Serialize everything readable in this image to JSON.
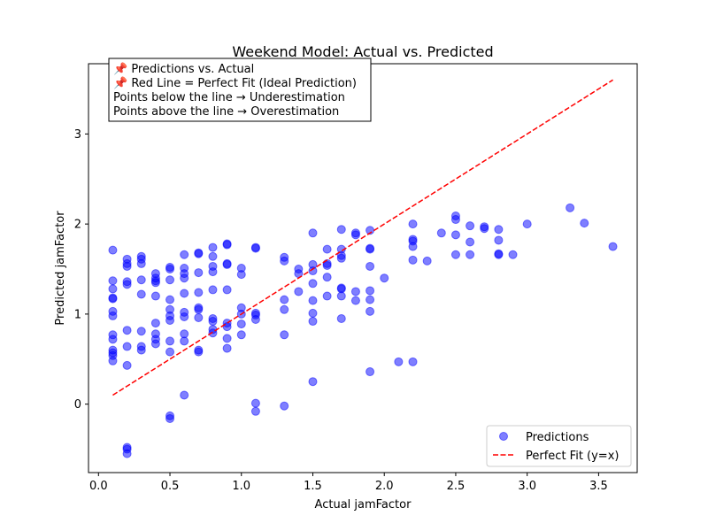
{
  "chart_data": {
    "type": "scatter",
    "title": "Weekend Model: Actual vs. Predicted",
    "xlabel": "Actual jamFactor",
    "ylabel": "Predicted jamFactor",
    "xlim": [
      -0.07,
      3.77
    ],
    "ylim": [
      -0.76,
      3.78
    ],
    "xticks": [
      0.0,
      0.5,
      1.0,
      1.5,
      2.0,
      2.5,
      3.0,
      3.5
    ],
    "xtick_labels": [
      "0.0",
      "0.5",
      "1.0",
      "1.5",
      "2.0",
      "2.5",
      "3.0",
      "3.5"
    ],
    "yticks": [
      0,
      1,
      2,
      3
    ],
    "ytick_labels": [
      "0",
      "1",
      "2",
      "3"
    ],
    "grid": false,
    "legend_position": "lower-right",
    "annotation_lines": [
      "📌 Predictions vs. Actual",
      "📌 Red Line = Perfect Fit (Ideal Prediction)",
      "Points below the line → Underestimation",
      "Points above the line → Overestimation"
    ],
    "series": [
      {
        "name": "Predictions",
        "kind": "scatter",
        "color": "#0000ff",
        "alpha": 0.5,
        "points": [
          [
            0.1,
            1.71
          ],
          [
            0.1,
            1.37
          ],
          [
            0.1,
            1.28
          ],
          [
            0.1,
            1.18
          ],
          [
            0.1,
            1.17
          ],
          [
            0.1,
            1.03
          ],
          [
            0.1,
            0.98
          ],
          [
            0.1,
            0.77
          ],
          [
            0.1,
            0.72
          ],
          [
            0.1,
            0.6
          ],
          [
            0.1,
            0.57
          ],
          [
            0.1,
            0.54
          ],
          [
            0.1,
            0.48
          ],
          [
            0.2,
            1.61
          ],
          [
            0.2,
            1.56
          ],
          [
            0.2,
            1.53
          ],
          [
            0.2,
            1.36
          ],
          [
            0.2,
            1.33
          ],
          [
            0.2,
            0.82
          ],
          [
            0.2,
            0.64
          ],
          [
            0.2,
            0.43
          ],
          [
            0.2,
            -0.48
          ],
          [
            0.2,
            -0.5
          ],
          [
            0.2,
            -0.55
          ],
          [
            0.3,
            1.64
          ],
          [
            0.3,
            1.61
          ],
          [
            0.3,
            1.56
          ],
          [
            0.3,
            1.38
          ],
          [
            0.3,
            1.22
          ],
          [
            0.3,
            0.81
          ],
          [
            0.3,
            0.64
          ],
          [
            0.3,
            0.6
          ],
          [
            0.4,
            1.45
          ],
          [
            0.4,
            1.4
          ],
          [
            0.4,
            1.37
          ],
          [
            0.4,
            1.35
          ],
          [
            0.4,
            1.2
          ],
          [
            0.4,
            0.9
          ],
          [
            0.4,
            0.78
          ],
          [
            0.4,
            0.72
          ],
          [
            0.4,
            0.67
          ],
          [
            0.5,
            1.52
          ],
          [
            0.5,
            1.5
          ],
          [
            0.5,
            1.38
          ],
          [
            0.5,
            1.16
          ],
          [
            0.5,
            1.05
          ],
          [
            0.5,
            0.98
          ],
          [
            0.5,
            0.93
          ],
          [
            0.5,
            0.7
          ],
          [
            0.5,
            0.58
          ],
          [
            0.5,
            -0.13
          ],
          [
            0.5,
            -0.16
          ],
          [
            0.6,
            1.66
          ],
          [
            0.6,
            1.51
          ],
          [
            0.6,
            1.45
          ],
          [
            0.6,
            1.4
          ],
          [
            0.6,
            1.23
          ],
          [
            0.6,
            1.02
          ],
          [
            0.6,
            0.97
          ],
          [
            0.6,
            0.78
          ],
          [
            0.6,
            0.7
          ],
          [
            0.6,
            0.1
          ],
          [
            0.7,
            1.68
          ],
          [
            0.7,
            1.67
          ],
          [
            0.7,
            1.46
          ],
          [
            0.7,
            1.24
          ],
          [
            0.7,
            1.07
          ],
          [
            0.7,
            1.05
          ],
          [
            0.7,
            0.96
          ],
          [
            0.7,
            0.6
          ],
          [
            0.7,
            0.58
          ],
          [
            0.8,
            1.74
          ],
          [
            0.8,
            1.64
          ],
          [
            0.8,
            1.53
          ],
          [
            0.8,
            1.47
          ],
          [
            0.8,
            1.27
          ],
          [
            0.8,
            0.95
          ],
          [
            0.8,
            0.92
          ],
          [
            0.8,
            0.83
          ],
          [
            0.8,
            0.79
          ],
          [
            0.9,
            1.78
          ],
          [
            0.9,
            1.77
          ],
          [
            0.9,
            1.56
          ],
          [
            0.9,
            1.55
          ],
          [
            0.9,
            1.27
          ],
          [
            0.9,
            0.9
          ],
          [
            0.9,
            0.86
          ],
          [
            0.9,
            0.73
          ],
          [
            0.9,
            0.62
          ],
          [
            1.0,
            1.51
          ],
          [
            1.0,
            1.44
          ],
          [
            1.0,
            1.07
          ],
          [
            1.0,
            1.0
          ],
          [
            1.0,
            0.89
          ],
          [
            1.0,
            0.77
          ],
          [
            1.1,
            1.74
          ],
          [
            1.1,
            1.73
          ],
          [
            1.1,
            1.01
          ],
          [
            1.1,
            0.99
          ],
          [
            1.1,
            0.94
          ],
          [
            1.1,
            0.01
          ],
          [
            1.1,
            -0.08
          ],
          [
            1.3,
            1.63
          ],
          [
            1.3,
            1.59
          ],
          [
            1.3,
            1.16
          ],
          [
            1.3,
            1.05
          ],
          [
            1.3,
            0.77
          ],
          [
            1.3,
            -0.02
          ],
          [
            1.4,
            1.5
          ],
          [
            1.4,
            1.45
          ],
          [
            1.4,
            1.25
          ],
          [
            1.5,
            1.9
          ],
          [
            1.5,
            1.55
          ],
          [
            1.5,
            1.48
          ],
          [
            1.5,
            1.34
          ],
          [
            1.5,
            1.15
          ],
          [
            1.5,
            1.01
          ],
          [
            1.5,
            0.92
          ],
          [
            1.5,
            0.25
          ],
          [
            1.6,
            1.72
          ],
          [
            1.6,
            1.56
          ],
          [
            1.6,
            1.54
          ],
          [
            1.6,
            1.41
          ],
          [
            1.6,
            1.2
          ],
          [
            1.7,
            1.94
          ],
          [
            1.7,
            1.72
          ],
          [
            1.7,
            1.65
          ],
          [
            1.7,
            1.62
          ],
          [
            1.7,
            1.29
          ],
          [
            1.7,
            1.28
          ],
          [
            1.7,
            1.2
          ],
          [
            1.7,
            0.95
          ],
          [
            1.8,
            1.9
          ],
          [
            1.8,
            1.88
          ],
          [
            1.8,
            1.25
          ],
          [
            1.8,
            1.15
          ],
          [
            1.9,
            1.93
          ],
          [
            1.9,
            1.73
          ],
          [
            1.9,
            1.72
          ],
          [
            1.9,
            1.53
          ],
          [
            1.9,
            1.26
          ],
          [
            1.9,
            1.16
          ],
          [
            1.9,
            1.03
          ],
          [
            1.9,
            0.36
          ],
          [
            2.0,
            1.4
          ],
          [
            2.1,
            0.47
          ],
          [
            2.2,
            2.0
          ],
          [
            2.2,
            1.83
          ],
          [
            2.2,
            1.81
          ],
          [
            2.2,
            1.75
          ],
          [
            2.2,
            1.6
          ],
          [
            2.2,
            0.47
          ],
          [
            2.3,
            1.59
          ],
          [
            2.4,
            1.9
          ],
          [
            2.5,
            2.09
          ],
          [
            2.5,
            2.05
          ],
          [
            2.5,
            1.88
          ],
          [
            2.5,
            1.66
          ],
          [
            2.6,
            1.98
          ],
          [
            2.6,
            1.8
          ],
          [
            2.6,
            1.66
          ],
          [
            2.7,
            1.97
          ],
          [
            2.7,
            1.95
          ],
          [
            2.8,
            1.94
          ],
          [
            2.8,
            1.82
          ],
          [
            2.8,
            1.67
          ],
          [
            2.8,
            1.66
          ],
          [
            2.9,
            1.66
          ],
          [
            3.0,
            2.0
          ],
          [
            3.3,
            2.18
          ],
          [
            3.4,
            2.01
          ],
          [
            3.6,
            1.75
          ]
        ]
      },
      {
        "name": "Perfect Fit (y=x)",
        "kind": "line",
        "color": "#ff0000",
        "dash": "dashed",
        "points": [
          [
            0.1,
            0.1
          ],
          [
            3.6,
            3.6
          ]
        ]
      }
    ]
  }
}
